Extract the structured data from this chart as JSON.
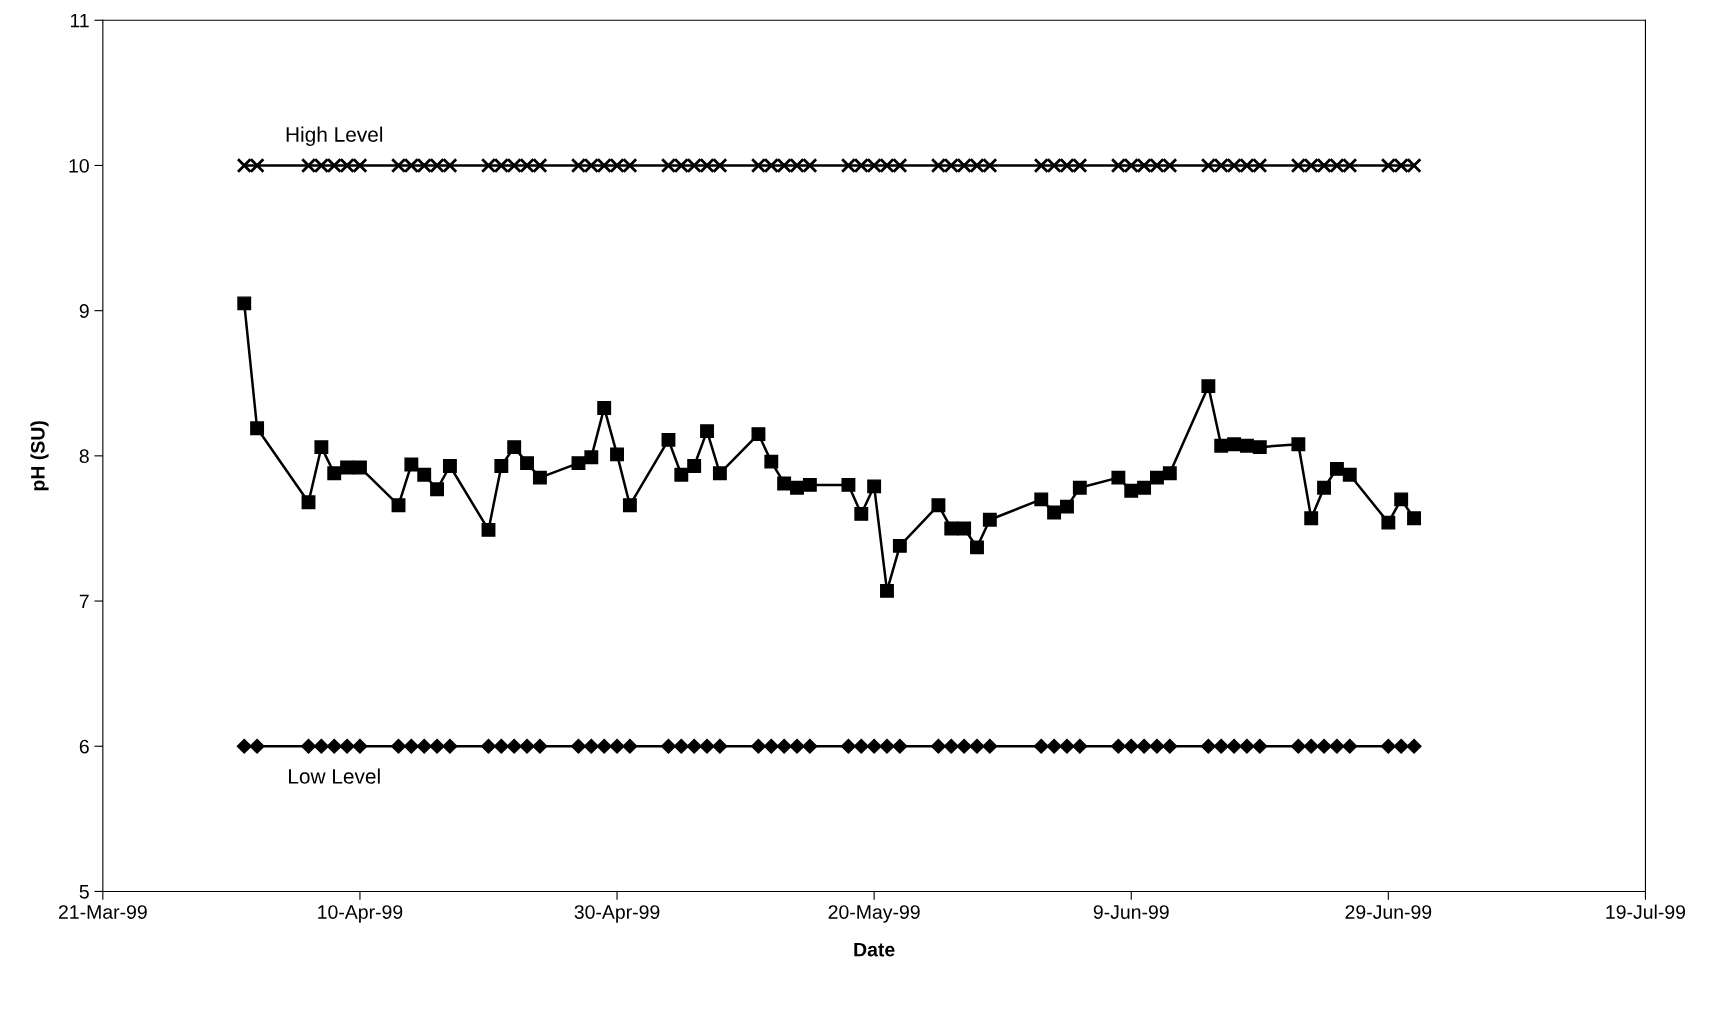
{
  "chart_data": {
    "type": "line",
    "xlabel": "Date",
    "ylabel": "pH (SU)",
    "x": [
      "1999-04-01",
      "1999-04-02",
      "1999-04-06",
      "1999-04-07",
      "1999-04-08",
      "1999-04-09",
      "1999-04-10",
      "1999-04-13",
      "1999-04-14",
      "1999-04-15",
      "1999-04-16",
      "1999-04-17",
      "1999-04-20",
      "1999-04-21",
      "1999-04-22",
      "1999-04-23",
      "1999-04-24",
      "1999-04-27",
      "1999-04-28",
      "1999-04-29",
      "1999-04-30",
      "1999-05-01",
      "1999-05-04",
      "1999-05-05",
      "1999-05-06",
      "1999-05-07",
      "1999-05-08",
      "1999-05-11",
      "1999-05-12",
      "1999-05-13",
      "1999-05-14",
      "1999-05-15",
      "1999-05-18",
      "1999-05-19",
      "1999-05-20",
      "1999-05-21",
      "1999-05-22",
      "1999-05-25",
      "1999-05-26",
      "1999-05-27",
      "1999-05-28",
      "1999-05-29",
      "1999-06-02",
      "1999-06-03",
      "1999-06-04",
      "1999-06-05",
      "1999-06-08",
      "1999-06-09",
      "1999-06-10",
      "1999-06-11",
      "1999-06-12",
      "1999-06-15",
      "1999-06-16",
      "1999-06-17",
      "1999-06-18",
      "1999-06-19",
      "1999-06-22",
      "1999-06-23",
      "1999-06-24",
      "1999-06-25",
      "1999-06-26",
      "1999-06-29",
      "1999-06-30",
      "1999-07-01"
    ],
    "series": [
      {
        "name": "High Level",
        "color": "#000000",
        "marker": "cross",
        "values": [
          10,
          10,
          10,
          10,
          10,
          10,
          10,
          10,
          10,
          10,
          10,
          10,
          10,
          10,
          10,
          10,
          10,
          10,
          10,
          10,
          10,
          10,
          10,
          10,
          10,
          10,
          10,
          10,
          10,
          10,
          10,
          10,
          10,
          10,
          10,
          10,
          10,
          10,
          10,
          10,
          10,
          10,
          10,
          10,
          10,
          10,
          10,
          10,
          10,
          10,
          10,
          10,
          10,
          10,
          10,
          10,
          10,
          10,
          10,
          10,
          10,
          10,
          10,
          10
        ]
      },
      {
        "color": "#000000",
        "marker": "square",
        "values": [
          9.05,
          8.19,
          7.68,
          8.06,
          7.88,
          7.92,
          7.92,
          7.66,
          7.94,
          7.87,
          7.77,
          7.93,
          7.49,
          7.93,
          8.06,
          7.95,
          7.85,
          7.95,
          7.99,
          8.33,
          8.01,
          7.66,
          8.11,
          7.87,
          7.93,
          8.17,
          7.88,
          8.15,
          7.96,
          7.81,
          7.78,
          7.8,
          7.8,
          7.6,
          7.79,
          7.07,
          7.38,
          7.66,
          7.5,
          7.5,
          7.37,
          7.56,
          7.7,
          7.61,
          7.65,
          7.78,
          7.85,
          7.76,
          7.78,
          7.85,
          7.88,
          8.48,
          8.07,
          8.08,
          8.07,
          8.06,
          8.08,
          7.57,
          7.78,
          7.91,
          7.87,
          7.54,
          7.7,
          7.57
        ]
      },
      {
        "name": "Low Level",
        "color": "#000000",
        "marker": "diamond",
        "values": [
          6,
          6,
          6,
          6,
          6,
          6,
          6,
          6,
          6,
          6,
          6,
          6,
          6,
          6,
          6,
          6,
          6,
          6,
          6,
          6,
          6,
          6,
          6,
          6,
          6,
          6,
          6,
          6,
          6,
          6,
          6,
          6,
          6,
          6,
          6,
          6,
          6,
          6,
          6,
          6,
          6,
          6,
          6,
          6,
          6,
          6,
          6,
          6,
          6,
          6,
          6,
          6,
          6,
          6,
          6,
          6,
          6,
          6,
          6,
          6,
          6,
          6,
          6,
          6
        ]
      }
    ],
    "xlim": [
      "1999-03-21",
      "1999-07-19"
    ],
    "xticks": [
      {
        "value": "1999-03-21",
        "label": "21-Mar-99"
      },
      {
        "value": "1999-04-10",
        "label": "10-Apr-99"
      },
      {
        "value": "1999-04-30",
        "label": "30-Apr-99"
      },
      {
        "value": "1999-05-20",
        "label": "20-May-99"
      },
      {
        "value": "1999-06-09",
        "label": "9-Jun-99"
      },
      {
        "value": "1999-06-29",
        "label": "29-Jun-99"
      },
      {
        "value": "1999-07-19",
        "label": "19-Jul-99"
      }
    ],
    "ylim": [
      5,
      11
    ],
    "yticks": [
      5,
      6,
      7,
      8,
      9,
      10,
      11
    ],
    "grid": false,
    "line_style": "solid"
  }
}
